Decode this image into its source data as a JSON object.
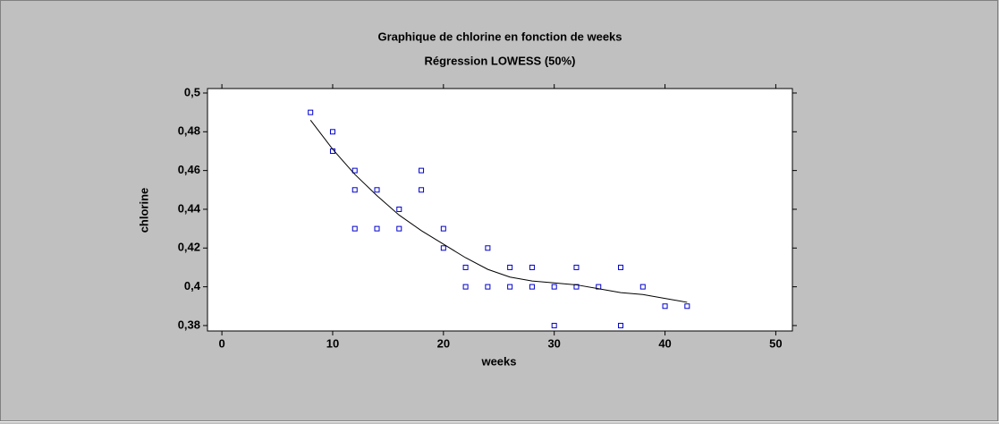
{
  "chart_data": {
    "type": "scatter",
    "title": "Graphique de chlorine en fonction de weeks",
    "subtitle": "Régression LOWESS (50%)",
    "x_label": "weeks",
    "y_label": "chlorine",
    "xlim": [
      -1.3,
      51.5
    ],
    "xticks": [
      0,
      10,
      20,
      30,
      40,
      50
    ],
    "ylim": [
      0.3772,
      0.5023
    ],
    "yticks": [
      {
        "value": 0.38,
        "label": "0,38"
      },
      {
        "value": 0.4,
        "label": "0,4"
      },
      {
        "value": 0.42,
        "label": "0,42"
      },
      {
        "value": 0.44,
        "label": "0,44"
      },
      {
        "value": 0.46,
        "label": "0,46"
      },
      {
        "value": 0.48,
        "label": "0,48"
      },
      {
        "value": 0.5,
        "label": "0,5"
      }
    ],
    "series": [
      {
        "type": "scatter",
        "color": "#0000cc",
        "x": [
          8,
          10,
          10,
          12,
          12,
          12,
          14,
          14,
          16,
          16,
          18,
          18,
          20,
          20,
          22,
          22,
          24,
          24,
          26,
          26,
          28,
          28,
          30,
          30,
          32,
          32,
          34,
          36,
          36,
          38,
          40,
          42
        ],
        "values": [
          0.49,
          0.48,
          0.47,
          0.46,
          0.45,
          0.43,
          0.45,
          0.43,
          0.44,
          0.43,
          0.46,
          0.45,
          0.43,
          0.42,
          0.41,
          0.4,
          0.42,
          0.4,
          0.41,
          0.4,
          0.41,
          0.4,
          0.4,
          0.38,
          0.41,
          0.4,
          0.4,
          0.41,
          0.38,
          0.4,
          0.39,
          0.39
        ]
      },
      {
        "type": "line",
        "color": "#000000",
        "x": [
          8,
          10,
          12,
          14,
          16,
          18,
          20,
          22,
          24,
          26,
          28,
          30,
          32,
          34,
          36,
          38,
          40,
          42
        ],
        "values": [
          0.486,
          0.471,
          0.458,
          0.447,
          0.437,
          0.429,
          0.422,
          0.415,
          0.409,
          0.405,
          0.403,
          0.402,
          0.401,
          0.399,
          0.397,
          0.396,
          0.394,
          0.392
        ]
      }
    ]
  }
}
